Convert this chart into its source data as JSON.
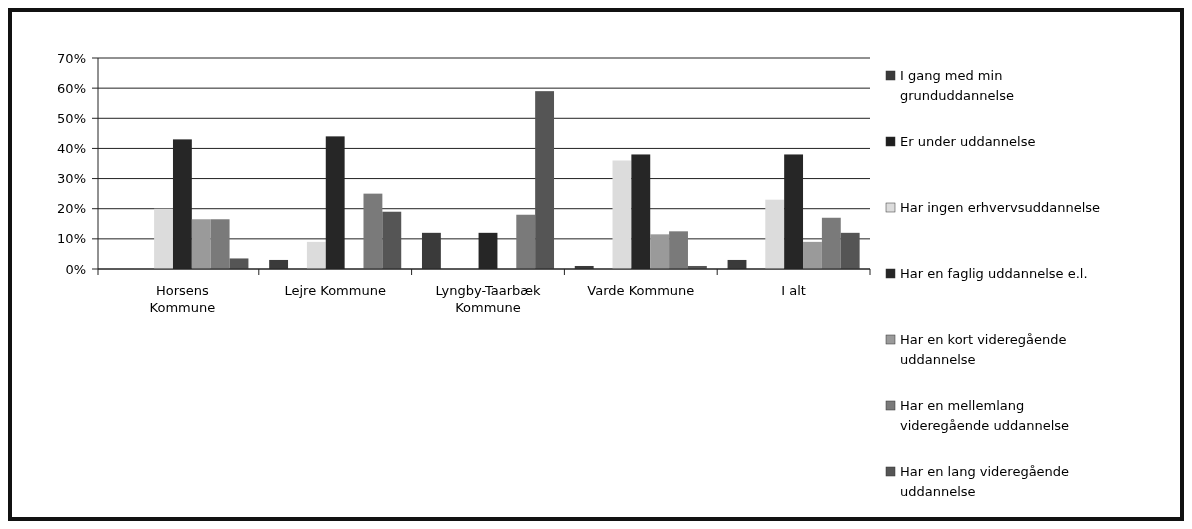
{
  "chart_data": {
    "type": "bar",
    "categories": [
      "Horsens Kommune",
      "Lejre Kommune",
      "Lyngby-Taarbæk Kommune",
      "Varde Kommune",
      "I alt"
    ],
    "series": [
      {
        "name": "I gang med min grunduddannelse",
        "color": "#3a3a3a",
        "values": [
          0,
          3,
          12,
          1,
          3
        ]
      },
      {
        "name": "Er under uddannelse",
        "color": "#1e1e1e",
        "values": [
          0,
          0,
          0,
          0,
          0
        ]
      },
      {
        "name": "Har ingen erhvervsuddannelse",
        "color": "#dcdcdc",
        "values": [
          20,
          9,
          0,
          36,
          23
        ]
      },
      {
        "name": "Har en faglig uddannelse e.l.",
        "color": "#262626",
        "values": [
          43,
          44,
          12,
          38,
          38
        ]
      },
      {
        "name": "Har en kort videregående uddannelse",
        "color": "#9a9a9a",
        "values": [
          16.5,
          0,
          0,
          11.5,
          9
        ]
      },
      {
        "name": "Har en mellemlang videregående uddannelse",
        "color": "#7a7a7a",
        "values": [
          16.5,
          25,
          18,
          12.5,
          17
        ]
      },
      {
        "name": "Har en lang videregående uddannelse",
        "color": "#555555",
        "values": [
          3.5,
          19,
          59,
          1,
          12
        ]
      }
    ],
    "ylim": [
      0,
      70
    ],
    "yticks": [
      {
        "value": 0,
        "label": "0%"
      },
      {
        "value": 10,
        "label": "10%"
      },
      {
        "value": 20,
        "label": "20%"
      },
      {
        "value": 30,
        "label": "30%"
      },
      {
        "value": 40,
        "label": "40%"
      },
      {
        "value": 50,
        "label": "50%"
      },
      {
        "value": 60,
        "label": "60%"
      },
      {
        "value": 70,
        "label": "70%"
      }
    ],
    "grid": "y",
    "legend": "right"
  }
}
